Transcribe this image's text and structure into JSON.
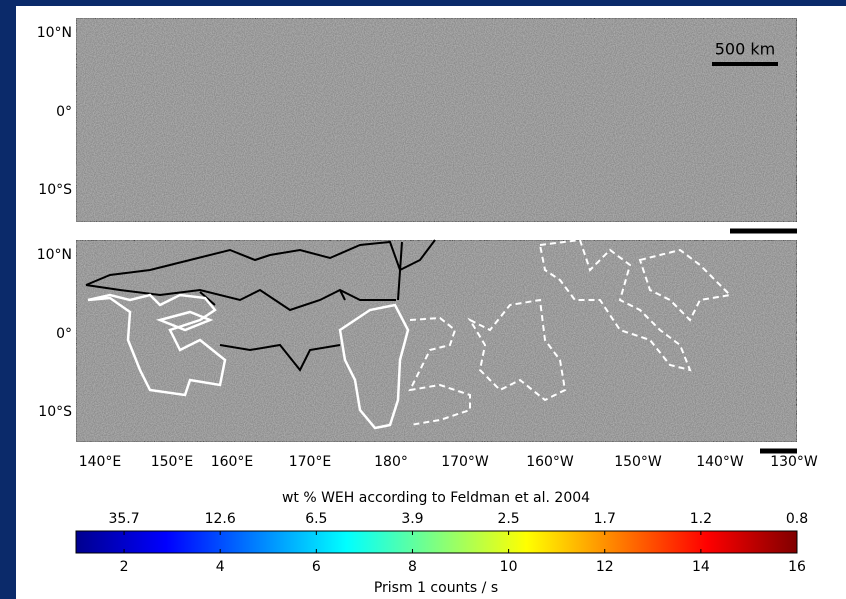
{
  "top_panel": {
    "lat_labels": [
      "10°N",
      "0°",
      "10°S"
    ],
    "scale_bar_label": "500 km"
  },
  "bottom_panel": {
    "lat_labels": [
      "10°N",
      "0°",
      "10°S"
    ]
  },
  "lon_labels": [
    "140°E",
    "150°E",
    "160°E",
    "170°E",
    "180°",
    "170°W",
    "160°W",
    "150°W",
    "140°W",
    "130°W"
  ],
  "colorbar": {
    "top_label": "wt % WEH according to Feldman et al. 2004",
    "top_ticks": [
      35.7,
      12.6,
      6.5,
      3.9,
      2.5,
      1.7,
      1.2,
      0.8
    ],
    "bottom_label": "Prism 1 counts / s",
    "ticks": [
      2,
      4,
      6,
      8,
      10,
      12,
      14,
      16
    ],
    "lim": [
      1,
      16
    ],
    "colormap": "jet"
  }
}
